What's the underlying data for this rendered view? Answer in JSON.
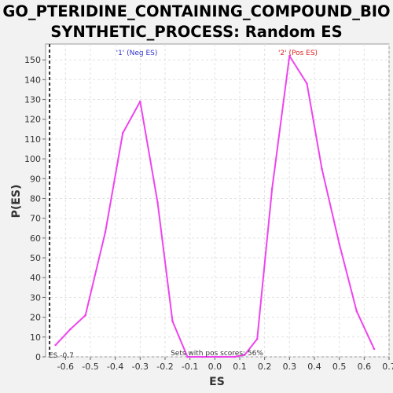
{
  "chart_data": {
    "type": "line",
    "title_lines": [
      "GO_PTERIDINE_CONTAINING_COMPOUND_BIO",
      "SYNTHETIC_PROCESS: Random ES distribution"
    ],
    "xlabel": "ES",
    "ylabel": "P(ES)",
    "xlim": [
      -0.68,
      0.7
    ],
    "ylim": [
      0,
      158
    ],
    "x_ticks": [
      "-0.6",
      "-0.5",
      "-0.4",
      "-0.3",
      "-0.2",
      "-0.1",
      "0.0",
      "0.1",
      "0.2",
      "0.3",
      "0.4",
      "0.5",
      "0.6",
      "0.7"
    ],
    "y_ticks": [
      "0",
      "10",
      "20",
      "30",
      "40",
      "50",
      "60",
      "70",
      "80",
      "90",
      "100",
      "110",
      "120",
      "130",
      "140",
      "150"
    ],
    "grid": true,
    "series": [
      {
        "color": "#ee44ee",
        "x": [
          -0.64,
          -0.58,
          -0.52,
          -0.44,
          -0.37,
          -0.3,
          -0.23,
          -0.17,
          -0.11,
          -0.05,
          0.02,
          0.08,
          0.12,
          0.17,
          0.23,
          0.3,
          0.37,
          0.43,
          0.5,
          0.57,
          0.64
        ],
        "y": [
          6,
          14,
          21,
          63,
          113,
          129,
          78,
          18,
          0,
          0,
          0,
          0,
          1,
          9,
          85,
          152,
          138,
          95,
          57,
          23,
          4
        ]
      }
    ],
    "annotations": {
      "neg_label": "'1' (Neg ES)",
      "pos_label": "'2' (Pos ES)",
      "es_marker": "ES -0.7",
      "es_value": -0.664,
      "pos_scores_text": "Sets with pos scores: 56%",
      "neg_color": "#3333cc",
      "pos_color": "#dd2222"
    }
  }
}
